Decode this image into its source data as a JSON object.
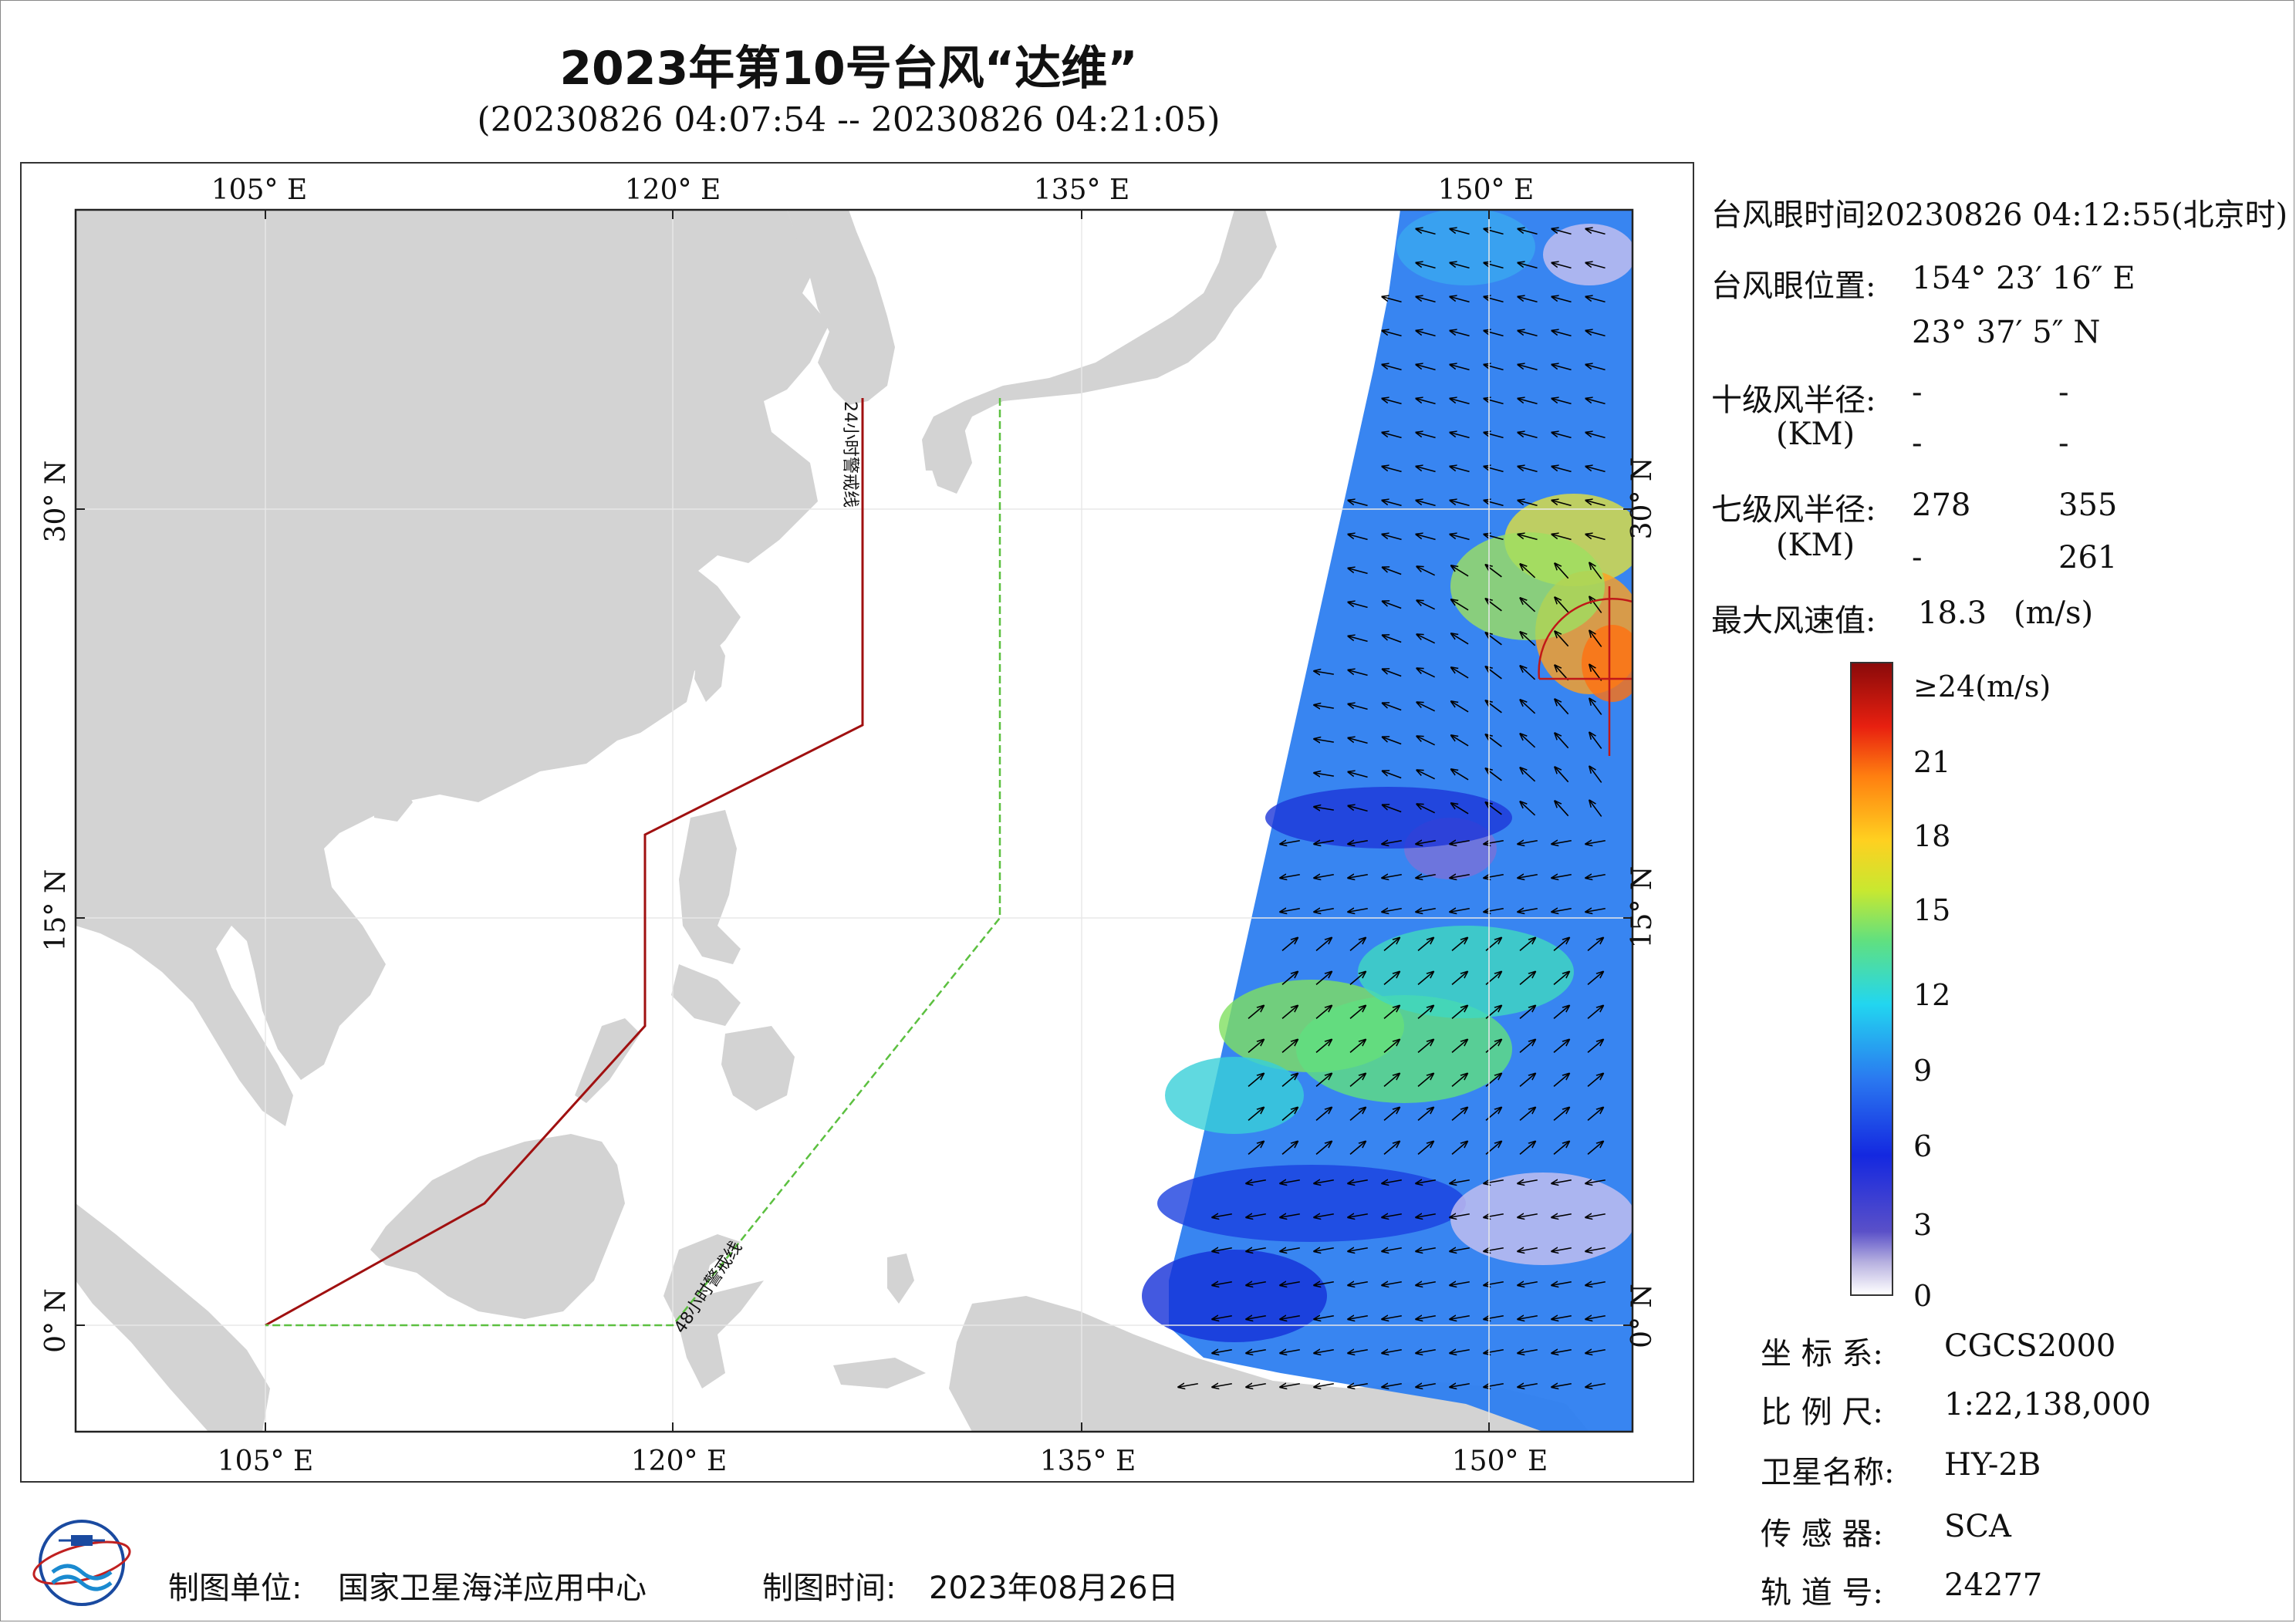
{
  "title": "2023年第10号台风“达维”",
  "subtitle": "(20230826 04:07:54 -- 20230826 04:21:05)",
  "map": {
    "lon_ticks": [
      "105° E",
      "120° E",
      "135° E",
      "150° E"
    ],
    "lat_ticks": [
      "30° N",
      "15° N",
      "0° N"
    ],
    "line_24h_label": "24小时警戒线",
    "line_48h_label": "48小时警戒线",
    "colors": {
      "land": "#d3d3d3",
      "line_24h": "#a01010",
      "line_48h": "#5cc040"
    }
  },
  "info": {
    "eye_time_label": "台风眼时间:",
    "eye_time_value": "20230826 04:12:55(北京时)",
    "eye_pos_label": "台风眼位置:",
    "eye_lon": "154° 23′ 16″ E",
    "eye_lat": "23° 37′ 5″ N",
    "r10_label": "十级风半径:",
    "r10_unit": "(KM)",
    "r10_v1": "-",
    "r10_v2": "-",
    "r10_v3": "-",
    "r10_v4": "-",
    "r7_label": "七级风半径:",
    "r7_unit": "(KM)",
    "r7_v1": "278",
    "r7_v2": "355",
    "r7_v3": "-",
    "r7_v4": "261",
    "max_label": "最大风速值:",
    "max_value": "18.3",
    "max_unit": "(m/s)"
  },
  "colorbar": {
    "labels": [
      "≥24(m/s)",
      "21",
      "18",
      "15",
      "12",
      "9",
      "6",
      "3",
      "0"
    ]
  },
  "meta": {
    "crs_label": "坐 标 系:",
    "crs_value": "CGCS2000",
    "scale_label": "比 例 尺:",
    "scale_value": "1:22,138,000",
    "sat_label": "卫星名称:",
    "sat_value": "HY-2B",
    "sensor_label": "传 感 器:",
    "sensor_value": "SCA",
    "orbit_label": "轨 道 号:",
    "orbit_value": "24277"
  },
  "footer": {
    "org_label": "制图单位:",
    "org_value": "国家卫星海洋应用中心",
    "time_label": "制图时间:",
    "time_value": "2023年08月26日"
  }
}
